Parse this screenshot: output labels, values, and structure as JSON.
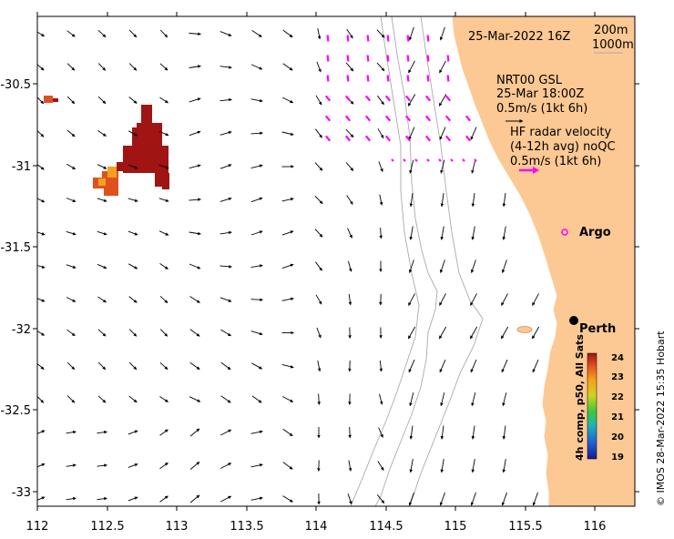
{
  "map": {
    "lon_range": [
      112,
      116.3
    ],
    "lat_range": [
      -33.1,
      -30.1
    ],
    "x_ticks": [
      "112",
      "112.5",
      "113",
      "113.5",
      "114",
      "114.5",
      "115",
      "115.5",
      "116"
    ],
    "y_ticks": [
      "-30.5",
      "-31",
      "-31.5",
      "-32",
      "-32.5",
      "-33"
    ],
    "land_color": "#fcc893",
    "sst_palette": [
      "#1a1a8c",
      "#1e5fd6",
      "#1fb4b4",
      "#3cc83c",
      "#d2d21e",
      "#f5a01e",
      "#e0501e",
      "#a01414"
    ],
    "radar_color": "#ff00ff"
  },
  "annotations": {
    "timestamp": "25-Mar-2022 16Z",
    "isobath_200": "200m",
    "isobath_1000": "1000m",
    "gsl_line1": "NRT00 GSL",
    "gsl_line2": "25-Mar 18:00Z",
    "gsl_line3": "0.5m/s (1kt 6h)",
    "hf_line1": "HF radar velocity",
    "hf_line2": "(4-12h avg) noQC",
    "hf_line3": "0.5m/s (1kt 6h)"
  },
  "places": {
    "argo": "Argo",
    "perth": "Perth"
  },
  "colorbar": {
    "ticks": [
      "24",
      "23",
      "22",
      "21",
      "20",
      "19"
    ],
    "title": "4h comp, p50, All Sats"
  },
  "credit": "© IMOS 28-Mar-2022 15:35 Hobart"
}
